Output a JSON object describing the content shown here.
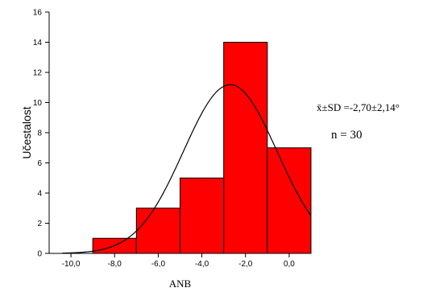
{
  "chart_data": {
    "type": "bar",
    "title": "",
    "xlabel": "ANB",
    "ylabel": "Učestalost",
    "bins": [
      {
        "from": -9.0,
        "to": -7.0,
        "value": 1
      },
      {
        "from": -7.0,
        "to": -5.0,
        "value": 3
      },
      {
        "from": -5.0,
        "to": -3.0,
        "value": 5
      },
      {
        "from": -3.0,
        "to": -1.0,
        "value": 14
      },
      {
        "from": -1.0,
        "to": 1.0,
        "value": 7
      }
    ],
    "xlim": [
      -11.0,
      1.0
    ],
    "ylim": [
      0,
      16
    ],
    "x_ticks": [
      {
        "value": -10,
        "label": "-10,0"
      },
      {
        "value": -8,
        "label": "-8,0"
      },
      {
        "value": -6,
        "label": "-6,0"
      },
      {
        "value": -4,
        "label": "-4,0"
      },
      {
        "value": -2,
        "label": "-2,0"
      },
      {
        "value": 0,
        "label": "0,0"
      }
    ],
    "y_ticks": [
      {
        "value": 0,
        "label": "0"
      },
      {
        "value": 2,
        "label": "2"
      },
      {
        "value": 4,
        "label": "4"
      },
      {
        "value": 6,
        "label": "6"
      },
      {
        "value": 8,
        "label": "8"
      },
      {
        "value": 10,
        "label": "10"
      },
      {
        "value": 12,
        "label": "12"
      },
      {
        "value": 14,
        "label": "14"
      },
      {
        "value": 16,
        "label": "16"
      }
    ],
    "normal_curve": {
      "mean": -2.7,
      "sd": 2.14,
      "n": 30,
      "bin_width": 2.0
    },
    "bar_color": "#ff0000",
    "grid": false,
    "legend": "none",
    "annotations": {
      "stats": "x̄±SD =-2,70±2,14°",
      "n": "n = 30"
    }
  }
}
